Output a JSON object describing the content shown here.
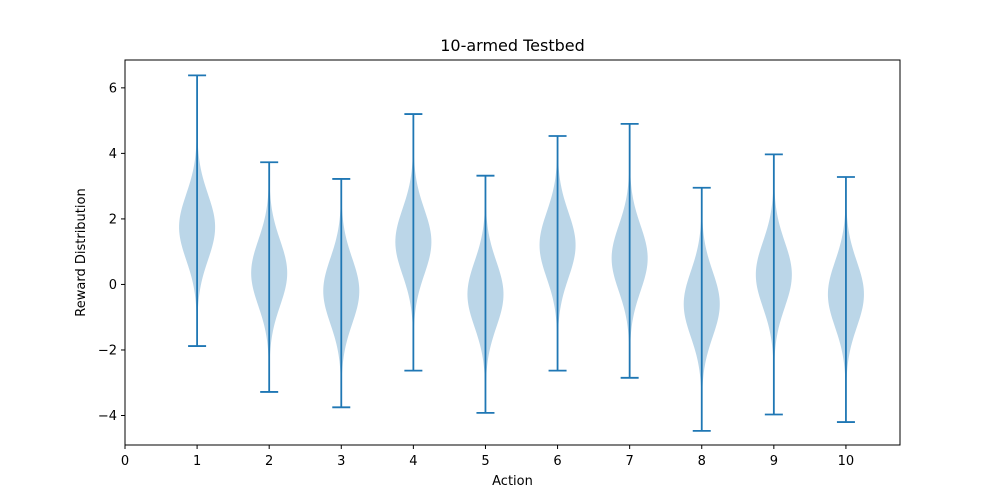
{
  "chart_data": {
    "type": "violin",
    "title": "10-armed Testbed",
    "xlabel": "Action",
    "ylabel": "Reward Distribution",
    "xlim": [
      0,
      10.75
    ],
    "ylim": [
      -4.9,
      6.85
    ],
    "xticks": [
      0,
      1,
      2,
      3,
      4,
      5,
      6,
      7,
      8,
      9,
      10
    ],
    "yticks": [
      -4,
      -2,
      0,
      2,
      4,
      6
    ],
    "grid": false,
    "colors": {
      "body": "#1f77b4",
      "line": "#1f77b4"
    },
    "violins": [
      {
        "action": 1,
        "min": -1.88,
        "max": 6.38,
        "mean": 1.75
      },
      {
        "action": 2,
        "min": -3.28,
        "max": 3.73,
        "mean": 0.35
      },
      {
        "action": 3,
        "min": -3.75,
        "max": 3.22,
        "mean": -0.2
      },
      {
        "action": 4,
        "min": -2.63,
        "max": 5.2,
        "mean": 1.3
      },
      {
        "action": 5,
        "min": -3.92,
        "max": 3.32,
        "mean": -0.3
      },
      {
        "action": 6,
        "min": -2.63,
        "max": 4.53,
        "mean": 1.2
      },
      {
        "action": 7,
        "min": -2.85,
        "max": 4.9,
        "mean": 0.8
      },
      {
        "action": 8,
        "min": -4.47,
        "max": 2.95,
        "mean": -0.6
      },
      {
        "action": 9,
        "min": -3.97,
        "max": 3.97,
        "mean": 0.3
      },
      {
        "action": 10,
        "min": -4.2,
        "max": 3.28,
        "mean": -0.3
      }
    ]
  }
}
